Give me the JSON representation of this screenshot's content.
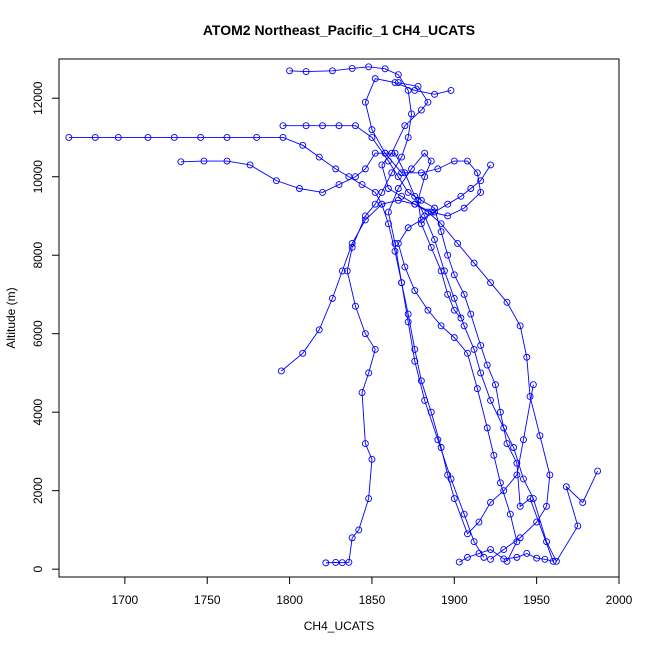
{
  "chart_data": {
    "type": "line",
    "title": "ATOM2 Northeast_Pacific_1 CH4_UCATS",
    "xlabel": "CH4_UCATS",
    "ylabel": "Altitude (m)",
    "xlim": [
      1660,
      2000
    ],
    "ylim": [
      -200,
      13000
    ],
    "xticks": [
      1700,
      1750,
      1800,
      1850,
      1900,
      1950,
      2000
    ],
    "yticks": [
      0,
      2000,
      4000,
      6000,
      8000,
      10000,
      12000
    ],
    "grid": false,
    "marker": "open-circle",
    "color": "#0000ff",
    "series": [
      {
        "points": [
          [
            1822,
            160
          ],
          [
            1828,
            170
          ],
          [
            1832,
            165
          ],
          [
            1836,
            175
          ],
          [
            1838,
            800
          ],
          [
            1842,
            1000
          ],
          [
            1848,
            1800
          ],
          [
            1850,
            2800
          ],
          [
            1846,
            3200
          ],
          [
            1844,
            4500
          ],
          [
            1848,
            5000
          ],
          [
            1852,
            5600
          ],
          [
            1846,
            6000
          ],
          [
            1840,
            6700
          ],
          [
            1835,
            7600
          ],
          [
            1838,
            8200
          ],
          [
            1846,
            9000
          ],
          [
            1852,
            9300
          ],
          [
            1856,
            9600
          ],
          [
            1862,
            10100
          ],
          [
            1868,
            10500
          ],
          [
            1872,
            11000
          ],
          [
            1874,
            11600
          ],
          [
            1872,
            12200
          ],
          [
            1866,
            12600
          ],
          [
            1858,
            12750
          ],
          [
            1848,
            12800
          ],
          [
            1838,
            12760
          ],
          [
            1826,
            12700
          ],
          [
            1810,
            12680
          ],
          [
            1800,
            12700
          ]
        ]
      },
      {
        "points": [
          [
            1903,
            180
          ],
          [
            1908,
            300
          ],
          [
            1915,
            400
          ],
          [
            1922,
            500
          ],
          [
            1930,
            260
          ],
          [
            1938,
            300
          ],
          [
            1944,
            400
          ],
          [
            1950,
            280
          ],
          [
            1955,
            250
          ],
          [
            1960,
            200
          ],
          [
            1946,
            1800
          ],
          [
            1940,
            1600
          ],
          [
            1938,
            2700
          ],
          [
            1932,
            3200
          ],
          [
            1928,
            4000
          ],
          [
            1925,
            4700
          ],
          [
            1920,
            5200
          ],
          [
            1916,
            5700
          ],
          [
            1910,
            6500
          ],
          [
            1906,
            7000
          ],
          [
            1900,
            7500
          ],
          [
            1896,
            8000
          ],
          [
            1892,
            8600
          ],
          [
            1888,
            9200
          ],
          [
            1880,
            9400
          ],
          [
            1872,
            9600
          ],
          [
            1866,
            10000
          ],
          [
            1860,
            10400
          ],
          [
            1850,
            11000
          ],
          [
            1840,
            11300
          ],
          [
            1830,
            11300
          ],
          [
            1820,
            11300
          ],
          [
            1810,
            11300
          ],
          [
            1796,
            11300
          ]
        ]
      },
      {
        "points": [
          [
            1987,
            2500
          ],
          [
            1978,
            1700
          ],
          [
            1968,
            2100
          ],
          [
            1975,
            1100
          ],
          [
            1962,
            200
          ],
          [
            1956,
            700
          ],
          [
            1948,
            1800
          ],
          [
            1942,
            2300
          ],
          [
            1936,
            3100
          ],
          [
            1930,
            3600
          ],
          [
            1922,
            4300
          ],
          [
            1916,
            5000
          ],
          [
            1912,
            5600
          ],
          [
            1906,
            6200
          ],
          [
            1900,
            6900
          ],
          [
            1894,
            7600
          ],
          [
            1888,
            8400
          ],
          [
            1882,
            9000
          ],
          [
            1876,
            9500
          ],
          [
            1870,
            10100
          ],
          [
            1864,
            10600
          ],
          [
            1858,
            10600
          ],
          [
            1852,
            10600
          ],
          [
            1846,
            10200
          ],
          [
            1840,
            10000
          ],
          [
            1830,
            9800
          ],
          [
            1820,
            9600
          ],
          [
            1806,
            9700
          ],
          [
            1792,
            9900
          ],
          [
            1776,
            10300
          ],
          [
            1762,
            10400
          ],
          [
            1748,
            10400
          ],
          [
            1734,
            10380
          ]
        ]
      },
      {
        "points": [
          [
            1948,
            4700
          ],
          [
            1942,
            3300
          ],
          [
            1938,
            2400
          ],
          [
            1930,
            2000
          ],
          [
            1922,
            1700
          ],
          [
            1915,
            1200
          ],
          [
            1908,
            900
          ],
          [
            1900,
            1800
          ],
          [
            1896,
            2400
          ],
          [
            1892,
            3100
          ],
          [
            1886,
            4000
          ],
          [
            1880,
            4800
          ],
          [
            1876,
            5600
          ],
          [
            1872,
            6500
          ],
          [
            1868,
            7300
          ],
          [
            1864,
            8100
          ],
          [
            1860,
            8800
          ],
          [
            1856,
            9300
          ],
          [
            1852,
            9600
          ],
          [
            1844,
            9800
          ],
          [
            1836,
            10000
          ],
          [
            1828,
            10200
          ],
          [
            1818,
            10500
          ],
          [
            1808,
            10800
          ],
          [
            1796,
            11000
          ],
          [
            1780,
            11000
          ],
          [
            1762,
            11000
          ],
          [
            1746,
            11000
          ],
          [
            1730,
            11000
          ],
          [
            1714,
            11000
          ],
          [
            1696,
            11000
          ],
          [
            1682,
            11000
          ],
          [
            1666,
            11000
          ]
        ]
      },
      {
        "points": [
          [
            1795,
            5050
          ],
          [
            1808,
            5500
          ],
          [
            1818,
            6100
          ],
          [
            1826,
            6900
          ],
          [
            1832,
            7600
          ],
          [
            1838,
            8300
          ],
          [
            1846,
            8900
          ],
          [
            1856,
            9300
          ],
          [
            1866,
            9400
          ],
          [
            1876,
            9300
          ],
          [
            1886,
            9100
          ],
          [
            1896,
            9000
          ],
          [
            1906,
            9200
          ],
          [
            1916,
            9600
          ],
          [
            1914,
            10100
          ],
          [
            1908,
            10400
          ],
          [
            1900,
            10400
          ],
          [
            1890,
            10200
          ],
          [
            1880,
            10100
          ],
          [
            1868,
            10100
          ],
          [
            1858,
            10600
          ],
          [
            1850,
            11200
          ],
          [
            1846,
            11900
          ],
          [
            1852,
            12500
          ],
          [
            1864,
            12400
          ],
          [
            1876,
            12200
          ],
          [
            1888,
            12100
          ],
          [
            1898,
            12200
          ]
        ]
      },
      {
        "points": [
          [
            1922,
            250
          ],
          [
            1930,
            500
          ],
          [
            1940,
            800
          ],
          [
            1950,
            1200
          ],
          [
            1956,
            1600
          ],
          [
            1958,
            2400
          ],
          [
            1952,
            3400
          ],
          [
            1946,
            4400
          ],
          [
            1944,
            5400
          ],
          [
            1940,
            6200
          ],
          [
            1932,
            6800
          ],
          [
            1922,
            7300
          ],
          [
            1912,
            7800
          ],
          [
            1902,
            8300
          ],
          [
            1892,
            8800
          ],
          [
            1884,
            9100
          ],
          [
            1876,
            9300
          ],
          [
            1868,
            9500
          ],
          [
            1860,
            9700
          ],
          [
            1856,
            10300
          ],
          [
            1862,
            10600
          ],
          [
            1870,
            11300
          ],
          [
            1880,
            11700
          ],
          [
            1884,
            11900
          ],
          [
            1878,
            12300
          ],
          [
            1866,
            12400
          ]
        ]
      },
      {
        "points": [
          [
            1918,
            300
          ],
          [
            1912,
            700
          ],
          [
            1906,
            1400
          ],
          [
            1898,
            2300
          ],
          [
            1890,
            3300
          ],
          [
            1882,
            4300
          ],
          [
            1876,
            5300
          ],
          [
            1872,
            6300
          ],
          [
            1868,
            7300
          ],
          [
            1864,
            8300
          ],
          [
            1860,
            9100
          ],
          [
            1866,
            9700
          ],
          [
            1874,
            10200
          ],
          [
            1882,
            10600
          ],
          [
            1886,
            10400
          ],
          [
            1882,
            10000
          ],
          [
            1878,
            9400
          ],
          [
            1880,
            8800
          ],
          [
            1886,
            8200
          ],
          [
            1892,
            7600
          ],
          [
            1896,
            7000
          ],
          [
            1900,
            6600
          ],
          [
            1904,
            6400
          ]
        ]
      },
      {
        "points": [
          [
            1932,
            200
          ],
          [
            1938,
            700
          ],
          [
            1934,
            1400
          ],
          [
            1928,
            2200
          ],
          [
            1924,
            2900
          ],
          [
            1920,
            3600
          ],
          [
            1914,
            4600
          ],
          [
            1908,
            5500
          ],
          [
            1900,
            5900
          ],
          [
            1892,
            6200
          ],
          [
            1884,
            6600
          ],
          [
            1876,
            7100
          ],
          [
            1870,
            7700
          ],
          [
            1866,
            8300
          ],
          [
            1872,
            8700
          ],
          [
            1880,
            8900
          ],
          [
            1888,
            9100
          ],
          [
            1896,
            9300
          ],
          [
            1904,
            9500
          ],
          [
            1910,
            9700
          ],
          [
            1916,
            9900
          ],
          [
            1922,
            10300
          ]
        ]
      }
    ]
  }
}
